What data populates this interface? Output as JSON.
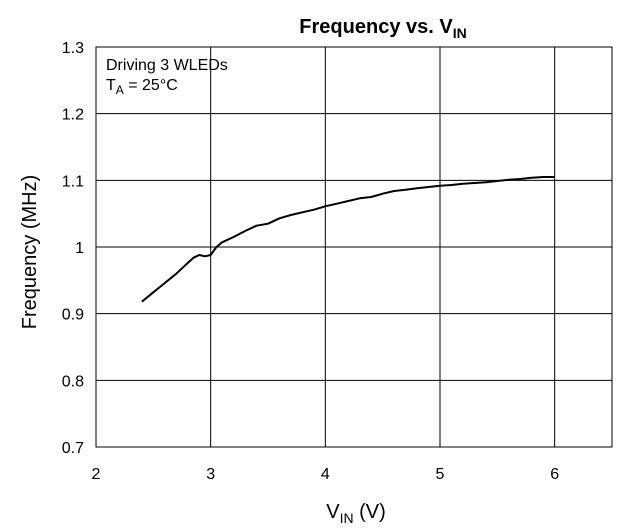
{
  "chart_data": {
    "type": "line",
    "title": "Frequency vs. V",
    "title_subscript": "IN",
    "xlabel": "V",
    "xlabel_subscript": "IN",
    "xlabel_unit": " (V)",
    "ylabel": "Frequency (MHz)",
    "xlim": [
      2,
      6.5
    ],
    "ylim": [
      0.7,
      1.3
    ],
    "grid": true,
    "xticks": [
      "2",
      "3",
      "4",
      "5",
      "6"
    ],
    "yticks": [
      "0.7",
      "0.8",
      "0.9",
      "1",
      "1.1",
      "1.2",
      "1.3"
    ],
    "annotation_line1": "Driving 3 WLEDs",
    "annotation_line2_main": "T",
    "annotation_line2_sub": "A",
    "annotation_line2_rest": " = 25°C",
    "series": [
      {
        "color": "#000000",
        "x": [
          2.4,
          2.5,
          2.6,
          2.7,
          2.75,
          2.8,
          2.85,
          2.9,
          2.95,
          3.0,
          3.05,
          3.1,
          3.2,
          3.3,
          3.4,
          3.5,
          3.6,
          3.7,
          3.8,
          3.9,
          4.0,
          4.1,
          4.2,
          4.3,
          4.4,
          4.5,
          4.6,
          4.7,
          4.8,
          4.9,
          5.0,
          5.1,
          5.2,
          5.3,
          5.4,
          5.5,
          5.6,
          5.7,
          5.8,
          5.9,
          6.0
        ],
        "y": [
          0.918,
          0.932,
          0.946,
          0.96,
          0.968,
          0.976,
          0.984,
          0.988,
          0.986,
          0.988,
          1.0,
          1.007,
          1.015,
          1.024,
          1.032,
          1.035,
          1.043,
          1.048,
          1.052,
          1.056,
          1.061,
          1.065,
          1.069,
          1.073,
          1.075,
          1.08,
          1.084,
          1.086,
          1.088,
          1.09,
          1.092,
          1.093,
          1.095,
          1.096,
          1.097,
          1.099,
          1.101,
          1.102,
          1.104,
          1.105,
          1.105
        ]
      }
    ]
  }
}
